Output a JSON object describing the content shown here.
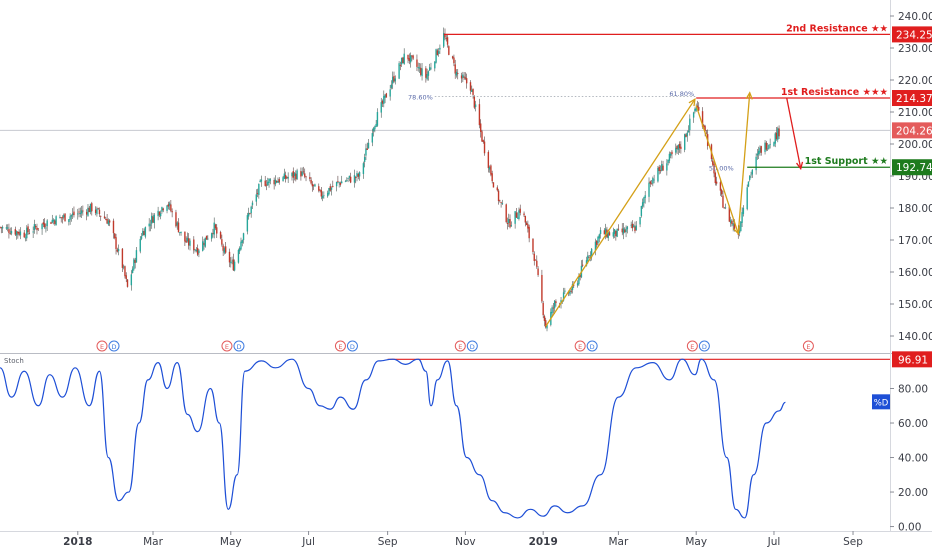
{
  "chart_data": [
    {
      "type": "candlestick",
      "x_type": "date",
      "ylim": [
        135,
        245
      ],
      "y_ticks": [
        "140.00",
        "150.00",
        "160.00",
        "170.00",
        "180.00",
        "190.00",
        "200.00",
        "210.00",
        "220.00",
        "230.00",
        "240.00"
      ],
      "grid": false,
      "x_ticks": [
        "2018",
        "Mar",
        "May",
        "Jul",
        "Sep",
        "Nov",
        "2019",
        "Mar",
        "May",
        "Jul",
        "Sep"
      ],
      "x_tick_dates": [
        "2018-01-01",
        "2018-03-01",
        "2018-05-01",
        "2018-07-01",
        "2018-09-01",
        "2018-11-01",
        "2019-01-01",
        "2019-03-01",
        "2019-05-01",
        "2019-07-01",
        "2019-09-01"
      ],
      "x_range": [
        "2017-11-01",
        "2019-09-30"
      ],
      "close_path": [
        {
          "x": "2017-11-01",
          "y": 174
        },
        {
          "x": "2017-11-20",
          "y": 172
        },
        {
          "x": "2017-12-10",
          "y": 176
        },
        {
          "x": "2017-12-30",
          "y": 178
        },
        {
          "x": "2018-01-12",
          "y": 180
        },
        {
          "x": "2018-01-25",
          "y": 176
        },
        {
          "x": "2018-02-05",
          "y": 162
        },
        {
          "x": "2018-02-09",
          "y": 155
        },
        {
          "x": "2018-02-20",
          "y": 172
        },
        {
          "x": "2018-03-01",
          "y": 177
        },
        {
          "x": "2018-03-12",
          "y": 182
        },
        {
          "x": "2018-03-25",
          "y": 170
        },
        {
          "x": "2018-04-05",
          "y": 167
        },
        {
          "x": "2018-04-18",
          "y": 174
        },
        {
          "x": "2018-04-27",
          "y": 165
        },
        {
          "x": "2018-05-03",
          "y": 162
        },
        {
          "x": "2018-05-15",
          "y": 178
        },
        {
          "x": "2018-05-25",
          "y": 188
        },
        {
          "x": "2018-06-10",
          "y": 189
        },
        {
          "x": "2018-06-25",
          "y": 191
        },
        {
          "x": "2018-07-10",
          "y": 184
        },
        {
          "x": "2018-07-25",
          "y": 188
        },
        {
          "x": "2018-08-10",
          "y": 190
        },
        {
          "x": "2018-08-20",
          "y": 205
        },
        {
          "x": "2018-09-05",
          "y": 220
        },
        {
          "x": "2018-09-15",
          "y": 228
        },
        {
          "x": "2018-10-01",
          "y": 221
        },
        {
          "x": "2018-10-10",
          "y": 229
        },
        {
          "x": "2018-10-15",
          "y": 234
        },
        {
          "x": "2018-10-25",
          "y": 222
        },
        {
          "x": "2018-11-05",
          "y": 218
        },
        {
          "x": "2018-11-15",
          "y": 200
        },
        {
          "x": "2018-11-25",
          "y": 185
        },
        {
          "x": "2018-12-05",
          "y": 175
        },
        {
          "x": "2018-12-15",
          "y": 180
        },
        {
          "x": "2018-12-25",
          "y": 165
        },
        {
          "x": "2019-01-03",
          "y": 143
        },
        {
          "x": "2019-01-10",
          "y": 150
        },
        {
          "x": "2019-01-25",
          "y": 155
        },
        {
          "x": "2019-02-05",
          "y": 165
        },
        {
          "x": "2019-02-15",
          "y": 172
        },
        {
          "x": "2019-03-01",
          "y": 172
        },
        {
          "x": "2019-03-15",
          "y": 174
        },
        {
          "x": "2019-03-25",
          "y": 188
        },
        {
          "x": "2019-04-05",
          "y": 193
        },
        {
          "x": "2019-04-20",
          "y": 200
        },
        {
          "x": "2019-05-01",
          "y": 212
        },
        {
          "x": "2019-05-08",
          "y": 205
        },
        {
          "x": "2019-05-15",
          "y": 190
        },
        {
          "x": "2019-05-25",
          "y": 178
        },
        {
          "x": "2019-06-03",
          "y": 172
        },
        {
          "x": "2019-06-10",
          "y": 188
        },
        {
          "x": "2019-06-20",
          "y": 198
        },
        {
          "x": "2019-07-01",
          "y": 202
        },
        {
          "x": "2019-07-05",
          "y": 204
        }
      ],
      "current_price": "204.26",
      "levels": [
        {
          "label": "2nd Resistance ★★",
          "value": "234.25",
          "y": 234.25,
          "color": "#e01e1e",
          "start": "2018-10-15"
        },
        {
          "label": "1st Resistance ★★★",
          "value": "214.37",
          "y": 214.37,
          "color": "#e01e1e",
          "start": "2019-05-01"
        },
        {
          "label": "1st Support ★★",
          "value": "192.74",
          "y": 192.74,
          "color": "#1e7b1e",
          "start": "2019-06-10"
        }
      ],
      "fib_labels": [
        {
          "text": "78.60%",
          "x": "2018-10-08",
          "y": 214.8
        },
        {
          "text": "61.80%",
          "x": "2019-05-01",
          "y": 216
        },
        {
          "text": "50.00%",
          "x": "2019-06-01",
          "y": 192.7
        }
      ],
      "event_markers": [
        {
          "date": "2018-01-20",
          "letters": [
            "E",
            "D"
          ]
        },
        {
          "date": "2018-04-28",
          "letters": [
            "E",
            "D"
          ]
        },
        {
          "date": "2018-07-26",
          "letters": [
            "E",
            "D"
          ]
        },
        {
          "date": "2018-10-28",
          "letters": [
            "E",
            "D"
          ]
        },
        {
          "date": "2019-01-30",
          "letters": [
            "E",
            "D"
          ]
        },
        {
          "date": "2019-04-28",
          "letters": [
            "E",
            "D"
          ]
        },
        {
          "date": "2019-07-28",
          "letters": [
            "E"
          ]
        }
      ]
    },
    {
      "type": "line",
      "title": "Stoch",
      "series": [
        {
          "name": "%D"
        }
      ],
      "ylim": [
        -2,
        100
      ],
      "y_ticks": [
        "0.00",
        "20.00",
        "40.00",
        "60.00",
        "80.00"
      ],
      "level": "96.91",
      "points": [
        {
          "x": "2017-11-01",
          "y": 92
        },
        {
          "x": "2017-11-10",
          "y": 75
        },
        {
          "x": "2017-11-20",
          "y": 90
        },
        {
          "x": "2017-12-01",
          "y": 70
        },
        {
          "x": "2017-12-10",
          "y": 88
        },
        {
          "x": "2017-12-20",
          "y": 75
        },
        {
          "x": "2017-12-30",
          "y": 92
        },
        {
          "x": "2018-01-10",
          "y": 70
        },
        {
          "x": "2018-01-18",
          "y": 90
        },
        {
          "x": "2018-01-25",
          "y": 40
        },
        {
          "x": "2018-02-02",
          "y": 15
        },
        {
          "x": "2018-02-10",
          "y": 20
        },
        {
          "x": "2018-02-18",
          "y": 60
        },
        {
          "x": "2018-02-25",
          "y": 85
        },
        {
          "x": "2018-03-05",
          "y": 95
        },
        {
          "x": "2018-03-12",
          "y": 80
        },
        {
          "x": "2018-03-20",
          "y": 95
        },
        {
          "x": "2018-03-28",
          "y": 65
        },
        {
          "x": "2018-04-05",
          "y": 55
        },
        {
          "x": "2018-04-15",
          "y": 80
        },
        {
          "x": "2018-04-22",
          "y": 60
        },
        {
          "x": "2018-04-29",
          "y": 10
        },
        {
          "x": "2018-05-06",
          "y": 30
        },
        {
          "x": "2018-05-12",
          "y": 90
        },
        {
          "x": "2018-05-25",
          "y": 96
        },
        {
          "x": "2018-06-05",
          "y": 92
        },
        {
          "x": "2018-06-18",
          "y": 97
        },
        {
          "x": "2018-07-01",
          "y": 80
        },
        {
          "x": "2018-07-10",
          "y": 70
        },
        {
          "x": "2018-07-18",
          "y": 68
        },
        {
          "x": "2018-07-26",
          "y": 75
        },
        {
          "x": "2018-08-05",
          "y": 68
        },
        {
          "x": "2018-08-15",
          "y": 85
        },
        {
          "x": "2018-08-25",
          "y": 96
        },
        {
          "x": "2018-09-05",
          "y": 97
        },
        {
          "x": "2018-09-15",
          "y": 94
        },
        {
          "x": "2018-09-25",
          "y": 97
        },
        {
          "x": "2018-10-01",
          "y": 90
        },
        {
          "x": "2018-10-05",
          "y": 70
        },
        {
          "x": "2018-10-10",
          "y": 85
        },
        {
          "x": "2018-10-18",
          "y": 96
        },
        {
          "x": "2018-10-25",
          "y": 70
        },
        {
          "x": "2018-11-02",
          "y": 40
        },
        {
          "x": "2018-11-12",
          "y": 30
        },
        {
          "x": "2018-11-22",
          "y": 15
        },
        {
          "x": "2018-12-02",
          "y": 8
        },
        {
          "x": "2018-12-12",
          "y": 5
        },
        {
          "x": "2018-12-22",
          "y": 10
        },
        {
          "x": "2019-01-01",
          "y": 6
        },
        {
          "x": "2019-01-10",
          "y": 12
        },
        {
          "x": "2019-01-20",
          "y": 8
        },
        {
          "x": "2019-02-01",
          "y": 12
        },
        {
          "x": "2019-02-15",
          "y": 30
        },
        {
          "x": "2019-03-01",
          "y": 75
        },
        {
          "x": "2019-03-15",
          "y": 92
        },
        {
          "x": "2019-03-28",
          "y": 95
        },
        {
          "x": "2019-04-10",
          "y": 85
        },
        {
          "x": "2019-04-20",
          "y": 97
        },
        {
          "x": "2019-04-30",
          "y": 88
        },
        {
          "x": "2019-05-05",
          "y": 97
        },
        {
          "x": "2019-05-15",
          "y": 85
        },
        {
          "x": "2019-05-25",
          "y": 40
        },
        {
          "x": "2019-06-01",
          "y": 10
        },
        {
          "x": "2019-06-08",
          "y": 5
        },
        {
          "x": "2019-06-15",
          "y": 30
        },
        {
          "x": "2019-06-25",
          "y": 60
        },
        {
          "x": "2019-07-05",
          "y": 67
        },
        {
          "x": "2019-07-10",
          "y": 72
        }
      ]
    }
  ]
}
